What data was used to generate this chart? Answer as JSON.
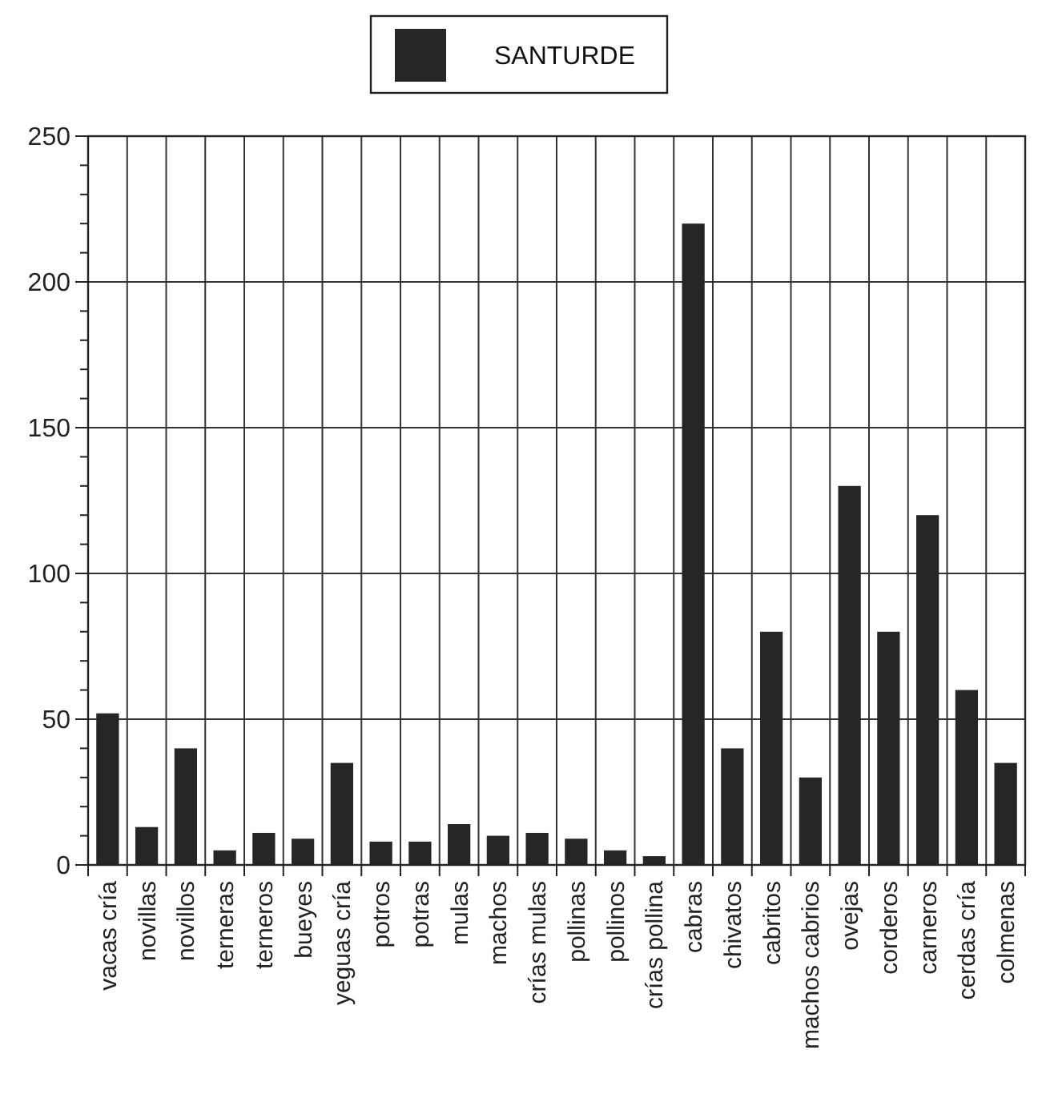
{
  "chart_data": {
    "type": "bar",
    "categories": [
      "vacas cría",
      "novillas",
      "novillos",
      "terneras",
      "terneros",
      "bueyes",
      "yeguas cría",
      "potros",
      "potras",
      "mulas",
      "machos",
      "crías mulas",
      "pollinas",
      "pollinos",
      "crías pollina",
      "cabras",
      "chivatos",
      "cabritos",
      "machos cabrios",
      "ovejas",
      "corderos",
      "carneros",
      "cerdas cría",
      "colmenas"
    ],
    "series": [
      {
        "name": "SANTURDE",
        "color": "#262626",
        "values": [
          52,
          13,
          40,
          5,
          11,
          9,
          35,
          8,
          8,
          14,
          10,
          11,
          9,
          5,
          3,
          220,
          40,
          80,
          30,
          130,
          80,
          120,
          60,
          35
        ]
      }
    ],
    "ylim": [
      0,
      250
    ],
    "yticks": [
      0,
      {
        "value": 10,
        "label": null
      },
      {
        "value": 20,
        "label": null
      },
      {
        "value": 30,
        "label": null
      },
      {
        "value": 40,
        "label": null
      },
      50,
      {
        "value": 60,
        "label": null
      },
      {
        "value": 70,
        "label": null
      },
      {
        "value": 80,
        "label": null
      },
      {
        "value": 90,
        "label": null
      },
      100,
      {
        "value": 110,
        "label": null
      },
      {
        "value": 120,
        "label": null
      },
      {
        "value": 130,
        "label": null
      },
      {
        "value": 140,
        "label": null
      },
      150,
      {
        "value": 160,
        "label": null
      },
      {
        "value": 170,
        "label": null
      },
      {
        "value": 180,
        "label": null
      },
      {
        "value": 190,
        "label": null
      },
      200,
      {
        "value": 210,
        "label": null
      },
      {
        "value": 220,
        "label": null
      },
      {
        "value": 230,
        "label": null
      },
      {
        "value": 240,
        "label": null
      },
      250
    ],
    "grid": true,
    "legend": "top"
  }
}
